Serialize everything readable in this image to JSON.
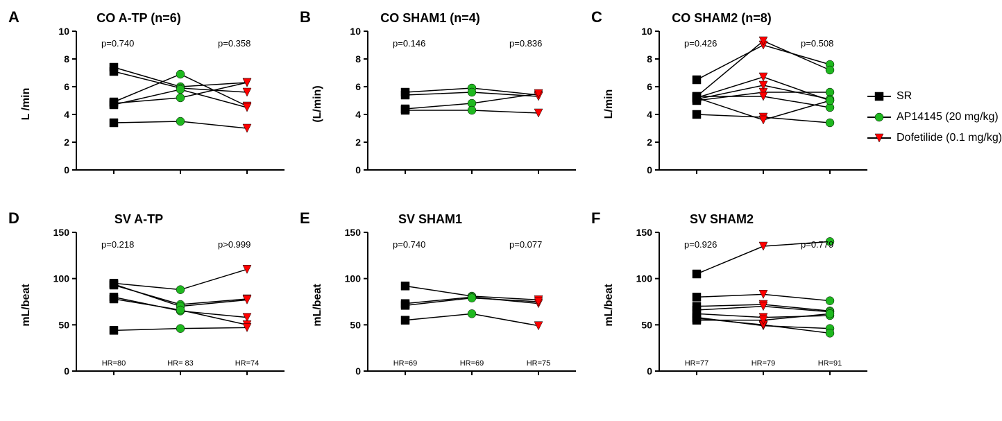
{
  "figure_size": [
    1425,
    607
  ],
  "background_color": "#ffffff",
  "axis_color": "#000000",
  "axis_width": 2,
  "tick_font_size": 14,
  "tick_font_weight": "700",
  "title_font_size": 18,
  "letter_font_size": 22,
  "ylabel_font_size": 16,
  "annot_font_size": 13,
  "connector_color": "#000000",
  "connector_width": 1.5,
  "series": {
    "sr": {
      "label": "SR",
      "color": "#000000",
      "marker": "square"
    },
    "ap": {
      "label": "AP14145 (20 mg/kg)",
      "color": "#1fb81f",
      "marker": "circle"
    },
    "dof": {
      "label": "Dofetilide (0.1 mg/kg)",
      "color": "#ff0000",
      "marker": "triangle"
    }
  },
  "legend_order": [
    "sr",
    "ap",
    "dof"
  ],
  "panels": [
    {
      "id": "A",
      "letter": "A",
      "title": "CO A-TP (n=6)",
      "ylabel": "L /min",
      "ylim": [
        0,
        10
      ],
      "ytick_step": 2,
      "x_positions": [
        0.18,
        0.5,
        0.82
      ],
      "x_series": [
        "sr",
        "ap",
        "dof"
      ],
      "p_left": "p=0.740",
      "p_right": "p=0.358",
      "hr_labels": [],
      "subjects": [
        [
          7.4,
          6.0,
          6.3
        ],
        [
          7.1,
          5.9,
          5.6
        ],
        [
          4.9,
          6.9,
          4.6
        ],
        [
          4.7,
          5.8,
          4.5
        ],
        [
          4.8,
          5.2,
          6.3
        ],
        [
          3.4,
          3.5,
          3.0
        ]
      ]
    },
    {
      "id": "B",
      "letter": "B",
      "title": "CO SHAM1 (n=4)",
      "ylabel": "(L/min)",
      "ylim": [
        0,
        10
      ],
      "ytick_step": 2,
      "x_positions": [
        0.18,
        0.5,
        0.82
      ],
      "x_series": [
        "sr",
        "ap",
        "dof"
      ],
      "p_left": "p=0.146",
      "p_right": "p=0.836",
      "hr_labels": [],
      "subjects": [
        [
          5.6,
          5.9,
          5.4
        ],
        [
          5.4,
          5.6,
          5.3
        ],
        [
          4.4,
          4.8,
          5.5
        ],
        [
          4.3,
          4.3,
          4.1
        ]
      ]
    },
    {
      "id": "C",
      "letter": "C",
      "title": "CO SHAM2 (n=8)",
      "ylabel": "L/min",
      "ylim": [
        0,
        10
      ],
      "ytick_step": 2,
      "x_positions": [
        0.18,
        0.5,
        0.82
      ],
      "x_series": [
        "sr",
        "dof",
        "ap"
      ],
      "p_left": "p=0.426",
      "p_right": "p=0.508",
      "hr_labels": [],
      "subjects": [
        [
          6.5,
          9.0,
          7.6
        ],
        [
          5.3,
          9.3,
          7.2
        ],
        [
          5.2,
          6.7,
          5.0
        ],
        [
          5.0,
          5.6,
          5.6
        ],
        [
          5.3,
          5.3,
          4.5
        ],
        [
          5.1,
          6.1,
          5.1
        ],
        [
          4.0,
          3.8,
          3.4
        ],
        [
          5.2,
          3.6,
          5.0
        ]
      ]
    },
    {
      "id": "D",
      "letter": "D",
      "title": "SV A-TP",
      "ylabel": "mL/beat",
      "ylim": [
        0,
        150
      ],
      "ytick_step": 50,
      "x_positions": [
        0.18,
        0.5,
        0.82
      ],
      "x_series": [
        "sr",
        "ap",
        "dof"
      ],
      "p_left": "p=0.218",
      "p_right": "p>0.999",
      "hr_labels": [
        "HR=80",
        "HR= 83",
        "HR=74"
      ],
      "subjects": [
        [
          95,
          88,
          110
        ],
        [
          93,
          72,
          78
        ],
        [
          94,
          70,
          77
        ],
        [
          80,
          65,
          58
        ],
        [
          78,
          66,
          50
        ],
        [
          44,
          46,
          47
        ]
      ]
    },
    {
      "id": "E",
      "letter": "E",
      "title": "SV SHAM1",
      "ylabel": "mL/beat",
      "ylim": [
        0,
        150
      ],
      "ytick_step": 50,
      "x_positions": [
        0.18,
        0.5,
        0.82
      ],
      "x_series": [
        "sr",
        "ap",
        "dof"
      ],
      "p_left": "p=0.740",
      "p_right": "p=0.077",
      "hr_labels": [
        "HR=69",
        "HR=69",
        "HR=75"
      ],
      "subjects": [
        [
          92,
          81,
          77
        ],
        [
          73,
          80,
          73
        ],
        [
          71,
          79,
          75
        ],
        [
          55,
          62,
          49
        ]
      ]
    },
    {
      "id": "F",
      "letter": "F",
      "title": "SV SHAM2",
      "ylabel": "mL/beat",
      "ylim": [
        0,
        150
      ],
      "ytick_step": 50,
      "x_positions": [
        0.18,
        0.5,
        0.82
      ],
      "x_series": [
        "sr",
        "dof",
        "ap"
      ],
      "p_left": "p=0.926",
      "p_right": "p=0.779",
      "hr_labels": [
        "HR=77",
        "HR=79",
        "HR=91"
      ],
      "subjects": [
        [
          105,
          135,
          140
        ],
        [
          80,
          83,
          76
        ],
        [
          70,
          72,
          65
        ],
        [
          66,
          70,
          64
        ],
        [
          62,
          58,
          60
        ],
        [
          58,
          49,
          46
        ],
        [
          57,
          50,
          41
        ],
        [
          55,
          55,
          62
        ]
      ]
    }
  ]
}
